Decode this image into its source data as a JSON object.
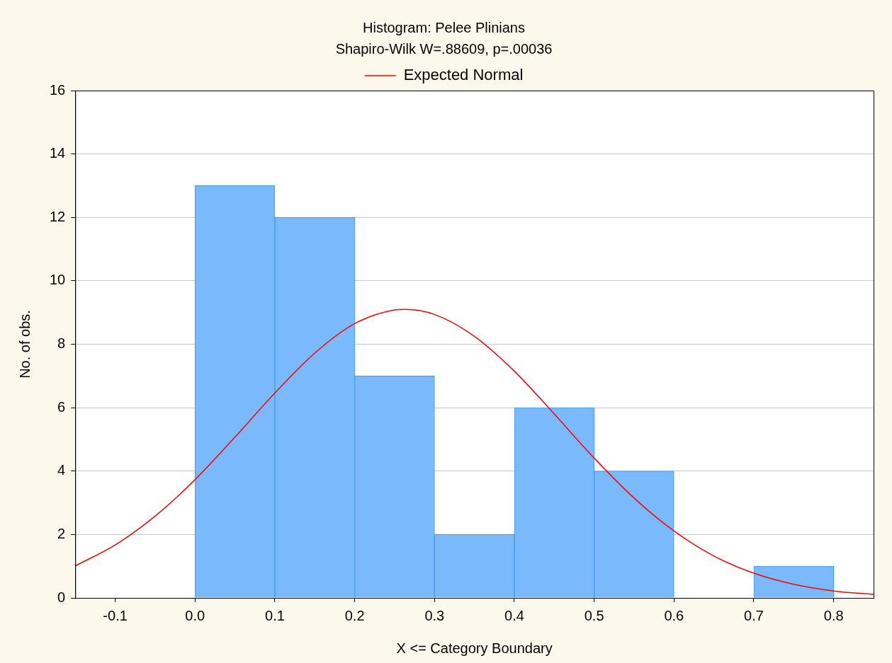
{
  "chart_data": {
    "type": "histogram",
    "title": "Histogram: Pelee Plinians",
    "subtitle": "Shapiro-Wilk W=.88609, p=.00036",
    "xlabel": "X <= Category Boundary",
    "ylabel": "No. of obs.",
    "bins": [
      0,
      0.1,
      0.2,
      0.3,
      0.4,
      0.5,
      0.6,
      0.7,
      0.8
    ],
    "values": [
      13,
      12,
      7,
      2,
      6,
      4,
      0,
      1
    ],
    "color": "#7ab9fc",
    "series": [
      {
        "name": "Expected Normal",
        "type": "line",
        "color": "#ff0000",
        "x": [
          -0.15,
          -0.1,
          -0.05,
          0,
          0.05,
          0.1,
          0.15,
          0.2,
          0.25,
          0.263,
          0.3,
          0.35,
          0.4,
          0.45,
          0.5,
          0.55,
          0.6,
          0.65,
          0.7,
          0.75,
          0.8,
          0.85
        ],
        "values": [
          1.01,
          1.67,
          2.58,
          3.73,
          5.07,
          6.46,
          7.72,
          8.65,
          9.08,
          9.1,
          8.94,
          8.25,
          7.15,
          5.8,
          4.41,
          3.15,
          2.11,
          1.32,
          0.78,
          0.43,
          0.22,
          0.11
        ]
      }
    ],
    "xlim": [
      -0.15,
      0.85
    ],
    "xticks": [
      -0.1,
      {
        "value": 0,
        "label": "0.0"
      },
      0.1,
      0.2,
      0.3,
      0.4,
      0.5,
      0.6,
      0.7,
      0.8
    ],
    "ylim": [
      0,
      16
    ],
    "yticks": [
      0,
      2,
      4,
      6,
      8,
      10,
      12,
      14,
      16
    ],
    "grid": "y",
    "legend": "top",
    "marker": "none",
    "line_style": "solid"
  }
}
